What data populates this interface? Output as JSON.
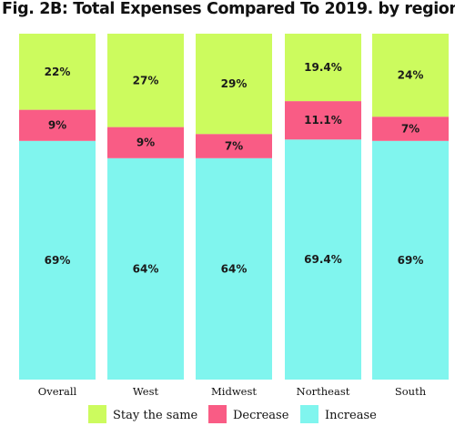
{
  "chart_data": {
    "type": "bar",
    "stacked": true,
    "title": "Fig. 2B: Total Expenses Compared To 2019. by region",
    "categories": [
      "Overall",
      "West",
      "Midwest",
      "Northeast",
      "South"
    ],
    "series": [
      {
        "name": "Increase",
        "color": "#80f5ee",
        "values": [
          69,
          64,
          64,
          69.4,
          69
        ],
        "labels": [
          "69%",
          "64%",
          "64%",
          "69.4%",
          "69%"
        ]
      },
      {
        "name": "Decrease",
        "color": "#f95c85",
        "values": [
          9,
          9,
          7,
          11.1,
          7
        ],
        "labels": [
          "9%",
          "9%",
          "7%",
          "11.1%",
          "7%"
        ]
      },
      {
        "name": "Stay the same",
        "color": "#ccfb5e",
        "values": [
          22,
          27,
          29,
          19.4,
          24
        ],
        "labels": [
          "22%",
          "27%",
          "29%",
          "19.4%",
          "24%"
        ]
      }
    ],
    "legend": {
      "position": "bottom",
      "order": [
        "Stay the same",
        "Decrease",
        "Increase"
      ]
    },
    "ylim": [
      0,
      100
    ],
    "grid": false
  }
}
